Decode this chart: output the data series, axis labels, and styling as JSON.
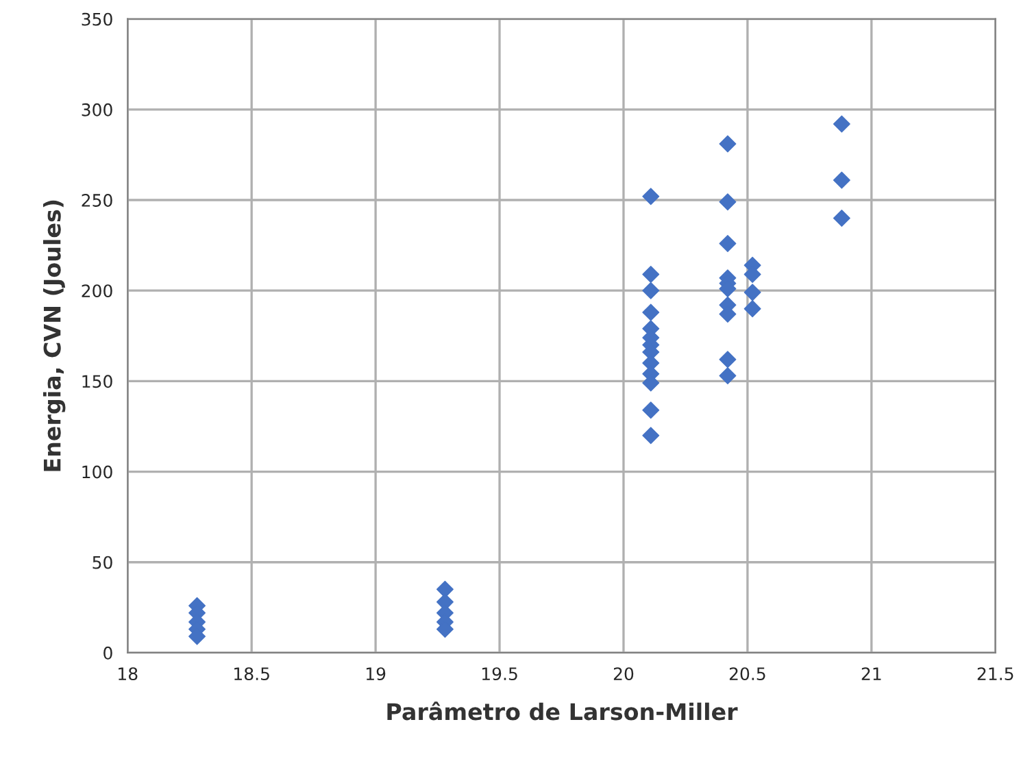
{
  "chart_data": {
    "type": "scatter",
    "xlabel": "Parâmetro de Larson-Miller",
    "ylabel": "Energia, CVN (Joules)",
    "x": [
      18.28,
      18.28,
      18.28,
      18.28,
      18.28,
      19.28,
      19.28,
      19.28,
      19.28,
      19.28,
      20.11,
      20.11,
      20.11,
      20.11,
      20.11,
      20.11,
      20.11,
      20.11,
      20.11,
      20.11,
      20.11,
      20.11,
      20.11,
      20.42,
      20.42,
      20.42,
      20.42,
      20.42,
      20.42,
      20.42,
      20.42,
      20.42,
      20.42,
      20.52,
      20.52,
      20.52,
      20.52,
      20.88,
      20.88,
      20.88
    ],
    "values": [
      26,
      22,
      17,
      13,
      9,
      35,
      28,
      22,
      17,
      13,
      252,
      209,
      200,
      188,
      179,
      174,
      170,
      166,
      160,
      154,
      149,
      134,
      120,
      281,
      249,
      226,
      207,
      204,
      201,
      192,
      187,
      162,
      153,
      214,
      209,
      199,
      190,
      292,
      261,
      240
    ],
    "color": "#4472c4",
    "marker": "diamond",
    "xlim": [
      18,
      21.5
    ],
    "xticks": [
      18,
      18.5,
      19,
      19.5,
      20,
      20.5,
      21,
      21.5
    ],
    "ylim": [
      0,
      350
    ],
    "yticks": [
      0,
      50,
      100,
      150,
      200,
      250,
      300,
      350
    ],
    "grid": true,
    "legend": false
  }
}
